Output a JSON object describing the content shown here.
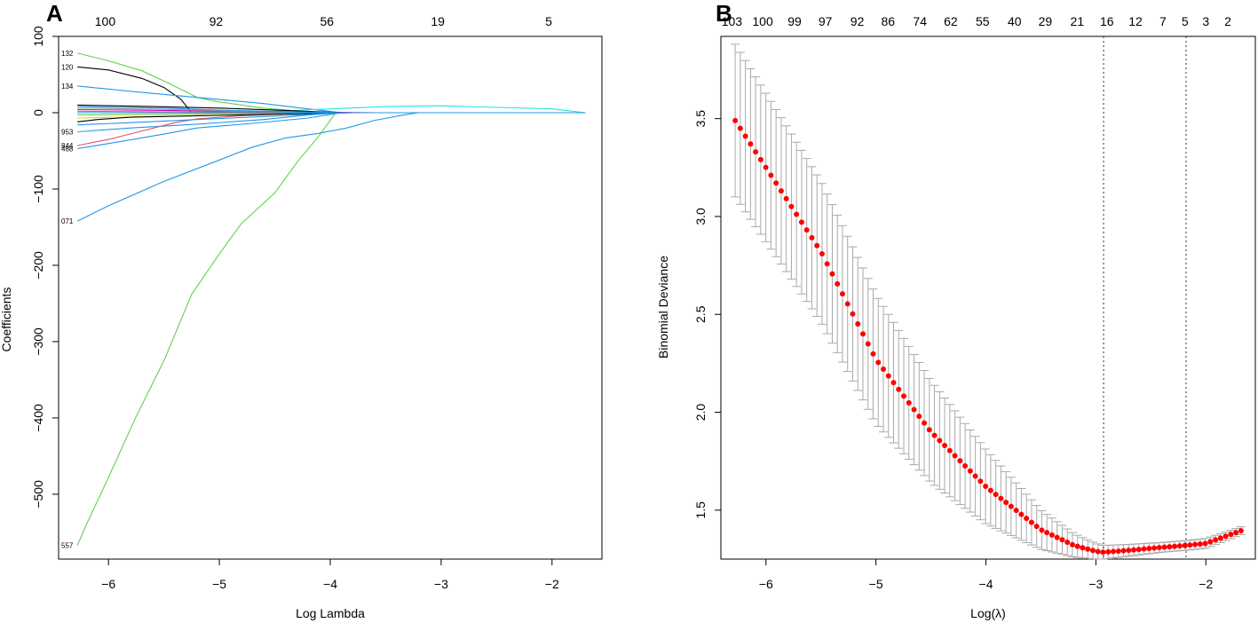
{
  "panels": {
    "A": {
      "letter": "A"
    },
    "B": {
      "letter": "B"
    }
  },
  "chart_data": [
    {
      "type": "line",
      "panel": "A",
      "title": "",
      "xlabel": "Log Lambda",
      "ylabel": "Coefficients",
      "xlim": [
        -6.45,
        -1.55
      ],
      "ylim": [
        -585,
        100
      ],
      "xticks": [
        -6,
        -5,
        -4,
        -3,
        -2
      ],
      "xtick_labels": [
        "−6",
        "−5",
        "−4",
        "−3",
        "−2"
      ],
      "yticks": [
        100,
        0,
        -100,
        -200,
        -300,
        -400,
        -500
      ],
      "ytick_labels": [
        "100",
        "0",
        "−100",
        "−200",
        "−300",
        "−400",
        "−500"
      ],
      "top_axis": {
        "positions": [
          -6.03,
          -5.03,
          -4.03,
          -3.03,
          -2.03
        ],
        "labels": [
          "100",
          "92",
          "56",
          "19",
          "5"
        ]
      },
      "series": [
        {
          "name": "557",
          "color": "#61d04f",
          "points": [
            [
              -6.28,
              -567
            ],
            [
              -6.2,
              -540
            ],
            [
              -6.0,
              -478
            ],
            [
              -5.75,
              -398
            ],
            [
              -5.5,
              -325
            ],
            [
              -5.25,
              -238
            ],
            [
              -5.0,
              -185
            ],
            [
              -4.8,
              -145
            ],
            [
              -4.5,
              -105
            ],
            [
              -4.3,
              -65
            ],
            [
              -4.1,
              -30
            ],
            [
              -3.95,
              0
            ],
            [
              -1.7,
              0
            ]
          ]
        },
        {
          "name": "071",
          "color": "#2297e6",
          "points": [
            [
              -6.28,
              -142
            ],
            [
              -6.0,
              -122
            ],
            [
              -5.5,
              -90
            ],
            [
              -5.0,
              -62
            ],
            [
              -4.7,
              -45
            ],
            [
              -4.4,
              -33
            ],
            [
              -4.1,
              -27
            ],
            [
              -3.85,
              -20
            ],
            [
              -3.6,
              -10
            ],
            [
              -3.3,
              -2
            ],
            [
              -3.2,
              0
            ],
            [
              -1.7,
              0
            ]
          ]
        },
        {
          "name": "132",
          "color": "#61d04f",
          "points": [
            [
              -6.28,
              78
            ],
            [
              -6.0,
              68
            ],
            [
              -5.7,
              55
            ],
            [
              -5.45,
              38
            ],
            [
              -5.2,
              20
            ],
            [
              -5.0,
              14
            ],
            [
              -4.6,
              6
            ],
            [
              -4.2,
              1
            ],
            [
              -3.9,
              0
            ],
            [
              -1.7,
              0
            ]
          ]
        },
        {
          "name": "120",
          "color": "#000000",
          "points": [
            [
              -6.28,
              60
            ],
            [
              -6.0,
              56
            ],
            [
              -5.7,
              45
            ],
            [
              -5.5,
              33
            ],
            [
              -5.35,
              18
            ],
            [
              -5.25,
              0
            ],
            [
              -1.7,
              0
            ]
          ]
        },
        {
          "name": "134",
          "color": "#2297e6",
          "points": [
            [
              -6.28,
              35
            ],
            [
              -5.8,
              28
            ],
            [
              -5.2,
              20
            ],
            [
              -4.6,
              12
            ],
            [
              -4.2,
              5
            ],
            [
              -3.9,
              0
            ],
            [
              -1.7,
              0
            ]
          ]
        },
        {
          "name": "953",
          "color": "#2297e6",
          "points": [
            [
              -6.28,
              -25
            ],
            [
              -5.8,
              -20
            ],
            [
              -5.2,
              -15
            ],
            [
              -4.6,
              -9
            ],
            [
              -4.2,
              -3
            ],
            [
              -3.9,
              0
            ],
            [
              -1.7,
              0
            ]
          ]
        },
        {
          "name": "844",
          "color": "#df536b",
          "points": [
            [
              -6.28,
              -43
            ],
            [
              -6.0,
              -35
            ],
            [
              -5.7,
              -24
            ],
            [
              -5.4,
              -13
            ],
            [
              -5.2,
              -8
            ],
            [
              -4.8,
              -4
            ],
            [
              -4.3,
              -1
            ],
            [
              -3.9,
              0
            ],
            [
              -1.7,
              0
            ]
          ]
        },
        {
          "name": "488",
          "color": "#2297e6",
          "points": [
            [
              -6.28,
              -47
            ],
            [
              -5.9,
              -38
            ],
            [
              -5.5,
              -28
            ],
            [
              -5.2,
              -20
            ],
            [
              -4.7,
              -14
            ],
            [
              -4.2,
              -7
            ],
            [
              -3.9,
              0
            ],
            [
              -1.7,
              0
            ]
          ]
        },
        {
          "name": "",
          "color": "#28e2e5",
          "points": [
            [
              -6.28,
              0
            ],
            [
              -5.0,
              0
            ],
            [
              -4.5,
              2
            ],
            [
              -4.0,
              5
            ],
            [
              -3.5,
              8
            ],
            [
              -3.0,
              9
            ],
            [
              -2.5,
              7
            ],
            [
              -2.0,
              5
            ],
            [
              -1.7,
              0
            ]
          ]
        },
        {
          "name": "",
          "color": "#cd0bbc",
          "points": [
            [
              -6.28,
              4
            ],
            [
              -5.5,
              3
            ],
            [
              -4.8,
              2
            ],
            [
              -4.2,
              1
            ],
            [
              -3.6,
              0
            ],
            [
              -1.7,
              0
            ]
          ]
        },
        {
          "name": "",
          "color": "#f5c710",
          "points": [
            [
              -6.28,
              -7
            ],
            [
              -5.6,
              -5
            ],
            [
              -4.9,
              -3
            ],
            [
              -4.3,
              -1
            ],
            [
              -3.8,
              0
            ],
            [
              -1.7,
              0
            ]
          ]
        },
        {
          "name": "",
          "color": "#9e9e9e",
          "points": [
            [
              -6.28,
              6
            ],
            [
              -5.4,
              4
            ],
            [
              -4.7,
              2
            ],
            [
              -4.0,
              0
            ],
            [
              -1.7,
              0
            ]
          ]
        },
        {
          "name": "",
          "color": "#000000",
          "points": [
            [
              -6.28,
              10
            ],
            [
              -5.6,
              8
            ],
            [
              -5.0,
              6
            ],
            [
              -4.4,
              3
            ],
            [
              -3.9,
              0
            ],
            [
              -1.7,
              0
            ]
          ]
        },
        {
          "name": "",
          "color": "#000000",
          "points": [
            [
              -6.28,
              -12
            ],
            [
              -6.1,
              -9
            ],
            [
              -5.8,
              -6
            ],
            [
              -5.2,
              -4
            ],
            [
              -4.5,
              -2
            ],
            [
              -3.8,
              0
            ],
            [
              -1.7,
              0
            ]
          ]
        },
        {
          "name": "",
          "color": "#df536b",
          "points": [
            [
              -6.28,
              2
            ],
            [
              -5.5,
              1
            ],
            [
              -4.6,
              1
            ],
            [
              -4.0,
              0
            ],
            [
              -1.7,
              0
            ]
          ]
        },
        {
          "name": "",
          "color": "#61d04f",
          "points": [
            [
              -6.28,
              -3
            ],
            [
              -5.5,
              -2
            ],
            [
              -4.8,
              -1
            ],
            [
              -4.1,
              0
            ],
            [
              -1.7,
              0
            ]
          ]
        },
        {
          "name": "",
          "color": "#2297e6",
          "points": [
            [
              -6.28,
              8
            ],
            [
              -5.5,
              6
            ],
            [
              -4.9,
              3
            ],
            [
              -4.3,
              1
            ],
            [
              -3.9,
              0
            ],
            [
              -1.7,
              0
            ]
          ]
        },
        {
          "name": "",
          "color": "#2297e6",
          "points": [
            [
              -6.28,
              -16
            ],
            [
              -5.8,
              -13
            ],
            [
              -5.2,
              -9
            ],
            [
              -4.6,
              -5
            ],
            [
              -4.0,
              -1
            ],
            [
              -3.8,
              0
            ],
            [
              -1.7,
              0
            ]
          ]
        },
        {
          "name": "",
          "color": "#000000",
          "points": [
            [
              -6.28,
              0
            ],
            [
              -1.7,
              0
            ]
          ]
        },
        {
          "name": "",
          "color": "#2297e6",
          "points": [
            [
              -6.28,
              0
            ],
            [
              -1.7,
              0
            ]
          ]
        }
      ]
    },
    {
      "type": "scatter",
      "panel": "B",
      "title": "",
      "xlabel": "Log(λ)",
      "ylabel": "Binomial Deviance",
      "xlim": [
        -6.41,
        -1.55
      ],
      "ylim": [
        1.25,
        3.92
      ],
      "xticks": [
        -6,
        -5,
        -4,
        -3,
        -2
      ],
      "xtick_labels": [
        "−6",
        "−5",
        "−4",
        "−3",
        "−2"
      ],
      "yticks": [
        1.5,
        2.0,
        2.5,
        3.0,
        3.5
      ],
      "ytick_labels": [
        "1.5",
        "2.0",
        "2.5",
        "3.0",
        "3.5"
      ],
      "top_axis": {
        "positions": [
          -6.31,
          -6.03,
          -5.74,
          -5.46,
          -5.17,
          -4.89,
          -4.6,
          -4.32,
          -4.03,
          -3.74,
          -3.46,
          -3.17,
          -2.9,
          -2.64,
          -2.39,
          -2.19,
          -2.0,
          -1.8
        ],
        "labels": [
          "103",
          "100",
          "99",
          "97",
          "92",
          "86",
          "74",
          "62",
          "55",
          "40",
          "29",
          "21",
          "16",
          "12",
          "7",
          "5",
          "3",
          "2"
        ]
      },
      "vlines": [
        -2.93,
        -2.18
      ],
      "lambda_range": [
        -6.28,
        -1.68
      ],
      "n_points": 100,
      "cv_curve": {
        "color": "#ff0000",
        "errorbar_color": "#a9a9a9",
        "x": [
          -6.28,
          -5.5,
          -5.0,
          -4.5,
          -4.0,
          -3.5,
          -3.2,
          -3.0,
          -2.93,
          -2.7,
          -2.4,
          -2.18,
          -2.0,
          -1.68
        ],
        "y": [
          3.49,
          2.82,
          2.27,
          1.9,
          1.62,
          1.4,
          1.32,
          1.29,
          1.285,
          1.295,
          1.31,
          1.32,
          1.33,
          1.395
        ],
        "se": [
          0.39,
          0.36,
          0.33,
          0.26,
          0.19,
          0.1,
          0.06,
          0.04,
          0.035,
          0.03,
          0.025,
          0.025,
          0.025,
          0.02
        ]
      }
    }
  ]
}
